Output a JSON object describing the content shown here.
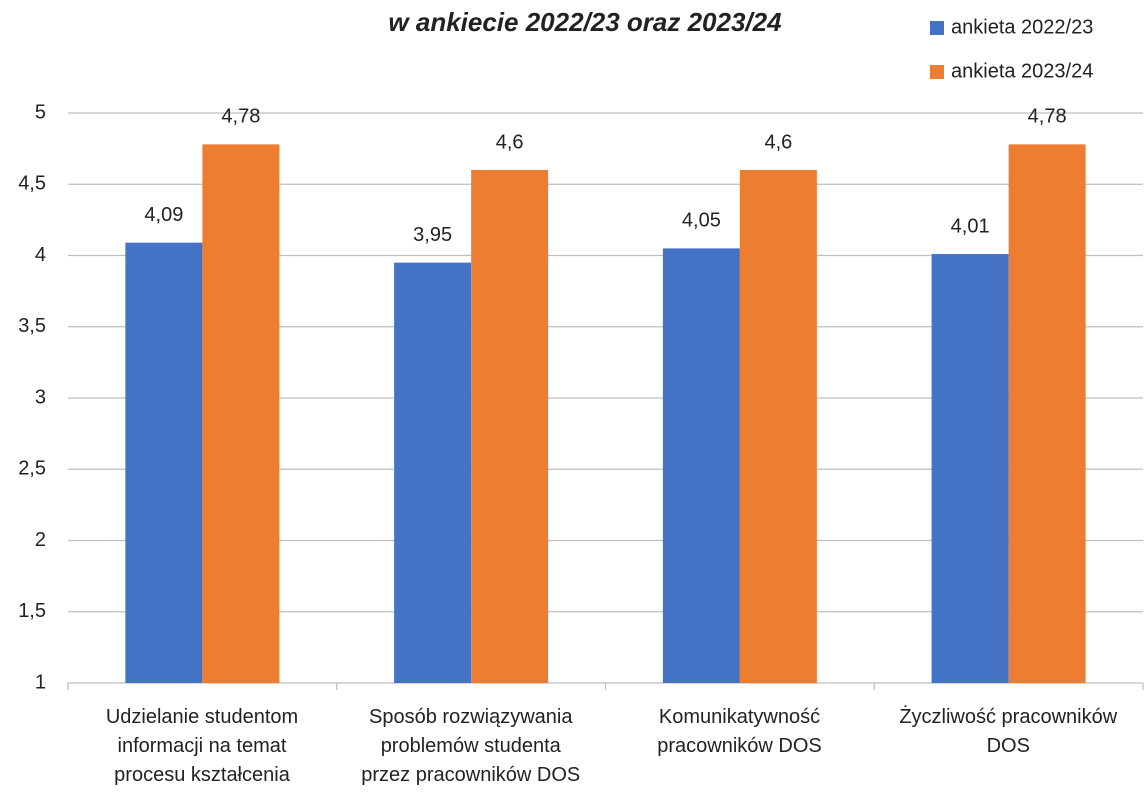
{
  "chart_data": {
    "type": "bar",
    "title": "w ankiecie 2022/23 oraz 2023/24",
    "categories": [
      "Udzielanie studentom\ninformacji na temat\nprocesu kształcenia",
      "Sposób rozwiązywania\nproblemów studenta\nprzez pracowników DOS",
      "Komunikatywność\npracowników DOS",
      "Życzliwość pracowników\nDOS"
    ],
    "series": [
      {
        "name": "ankieta 2022/23",
        "color": "#4472c4",
        "values": [
          4.09,
          3.95,
          4.05,
          4.01
        ],
        "value_labels": [
          "4,09",
          "3,95",
          "4,05",
          "4,01"
        ]
      },
      {
        "name": "ankieta 2023/24",
        "color": "#ed7d31",
        "values": [
          4.78,
          4.6,
          4.6,
          4.78
        ],
        "value_labels": [
          "4,78",
          "4,6",
          "4,6",
          "4,78"
        ]
      }
    ],
    "ylim": [
      1,
      5
    ],
    "yticks": [
      1,
      {
        "value": 1.5,
        "label": "1,5"
      },
      2,
      {
        "value": 2.5,
        "label": "2,5"
      },
      3,
      {
        "value": 3.5,
        "label": "3,5"
      },
      4,
      {
        "value": 4.5,
        "label": "4,5"
      },
      5
    ],
    "grid": true,
    "legend": "top-right"
  }
}
